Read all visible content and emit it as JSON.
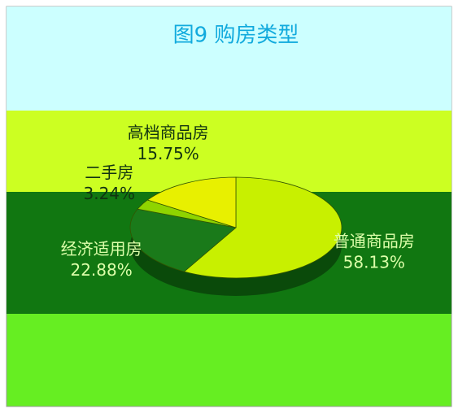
{
  "chart_data": {
    "type": "pie",
    "title": "图9 购房类型",
    "categories": [
      "普通商品房",
      "经济适用房",
      "二手房",
      "高档商品房"
    ],
    "values": [
      58.13,
      22.88,
      3.24,
      15.75
    ],
    "value_labels": [
      "58.13%",
      "22.88%",
      "3.24%",
      "15.75%"
    ],
    "colors": [
      "#c8f000",
      "#1a7a1a",
      "#8fd400",
      "#e8f000"
    ]
  }
}
